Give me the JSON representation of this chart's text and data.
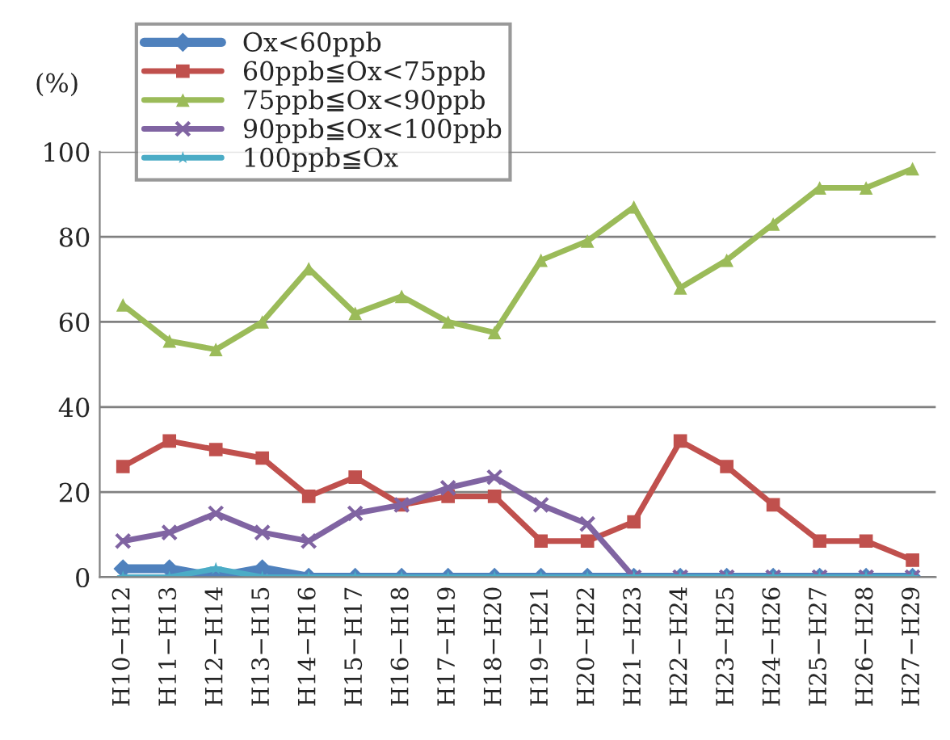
{
  "chart_data": {
    "type": "line",
    "ylabel": "(%)",
    "categories": [
      "H10−H12",
      "H11−H13",
      "H12−H14",
      "H13−H15",
      "H14−H16",
      "H15−H17",
      "H16−H18",
      "H17−H19",
      "H18−H20",
      "H19−H21",
      "H20−H22",
      "H21−H23",
      "H22−H24",
      "H23−H25",
      "H24−H26",
      "H25−H27",
      "H26−H28",
      "H27−H29"
    ],
    "series": [
      {
        "name": "Ox<60ppb",
        "color": "#4f81bd",
        "marker": "diamond",
        "values": [
          2,
          2,
          0,
          2,
          0,
          0,
          0,
          0,
          0,
          0,
          0,
          0,
          0,
          0,
          0,
          0,
          0,
          0
        ]
      },
      {
        "name": "60ppb≦Ox<75ppb",
        "color": "#c0504d",
        "marker": "square",
        "values": [
          26,
          32,
          30,
          28,
          19,
          23.5,
          17,
          19,
          19,
          8.5,
          8.5,
          13,
          32,
          26,
          17,
          8.5,
          8.5,
          4
        ]
      },
      {
        "name": "75ppb≦Ox<90ppb",
        "color": "#9bbb59",
        "marker": "triangle",
        "values": [
          64,
          55.5,
          53.5,
          60,
          72.5,
          62,
          66,
          60,
          57.5,
          74.5,
          79,
          87,
          68,
          74.5,
          83,
          91.5,
          91.5,
          96
        ]
      },
      {
        "name": "90ppb≦Ox<100ppb",
        "color": "#8064a2",
        "marker": "cross",
        "values": [
          8.5,
          10.5,
          15,
          10.5,
          8.5,
          15,
          17,
          21,
          23.5,
          17,
          12.5,
          0,
          0,
          0,
          0,
          0,
          0,
          0
        ]
      },
      {
        "name": "100ppb≦Ox",
        "color": "#4bacc6",
        "marker": "star",
        "values": [
          0,
          0,
          2,
          0,
          0,
          0,
          0,
          0,
          0,
          0,
          0,
          0,
          0,
          0,
          0,
          0,
          0,
          0
        ]
      }
    ],
    "ylim": [
      0,
      100
    ],
    "yticks": [
      0,
      20,
      40,
      60,
      80,
      100
    ],
    "grid": "y",
    "legend": "top left"
  }
}
